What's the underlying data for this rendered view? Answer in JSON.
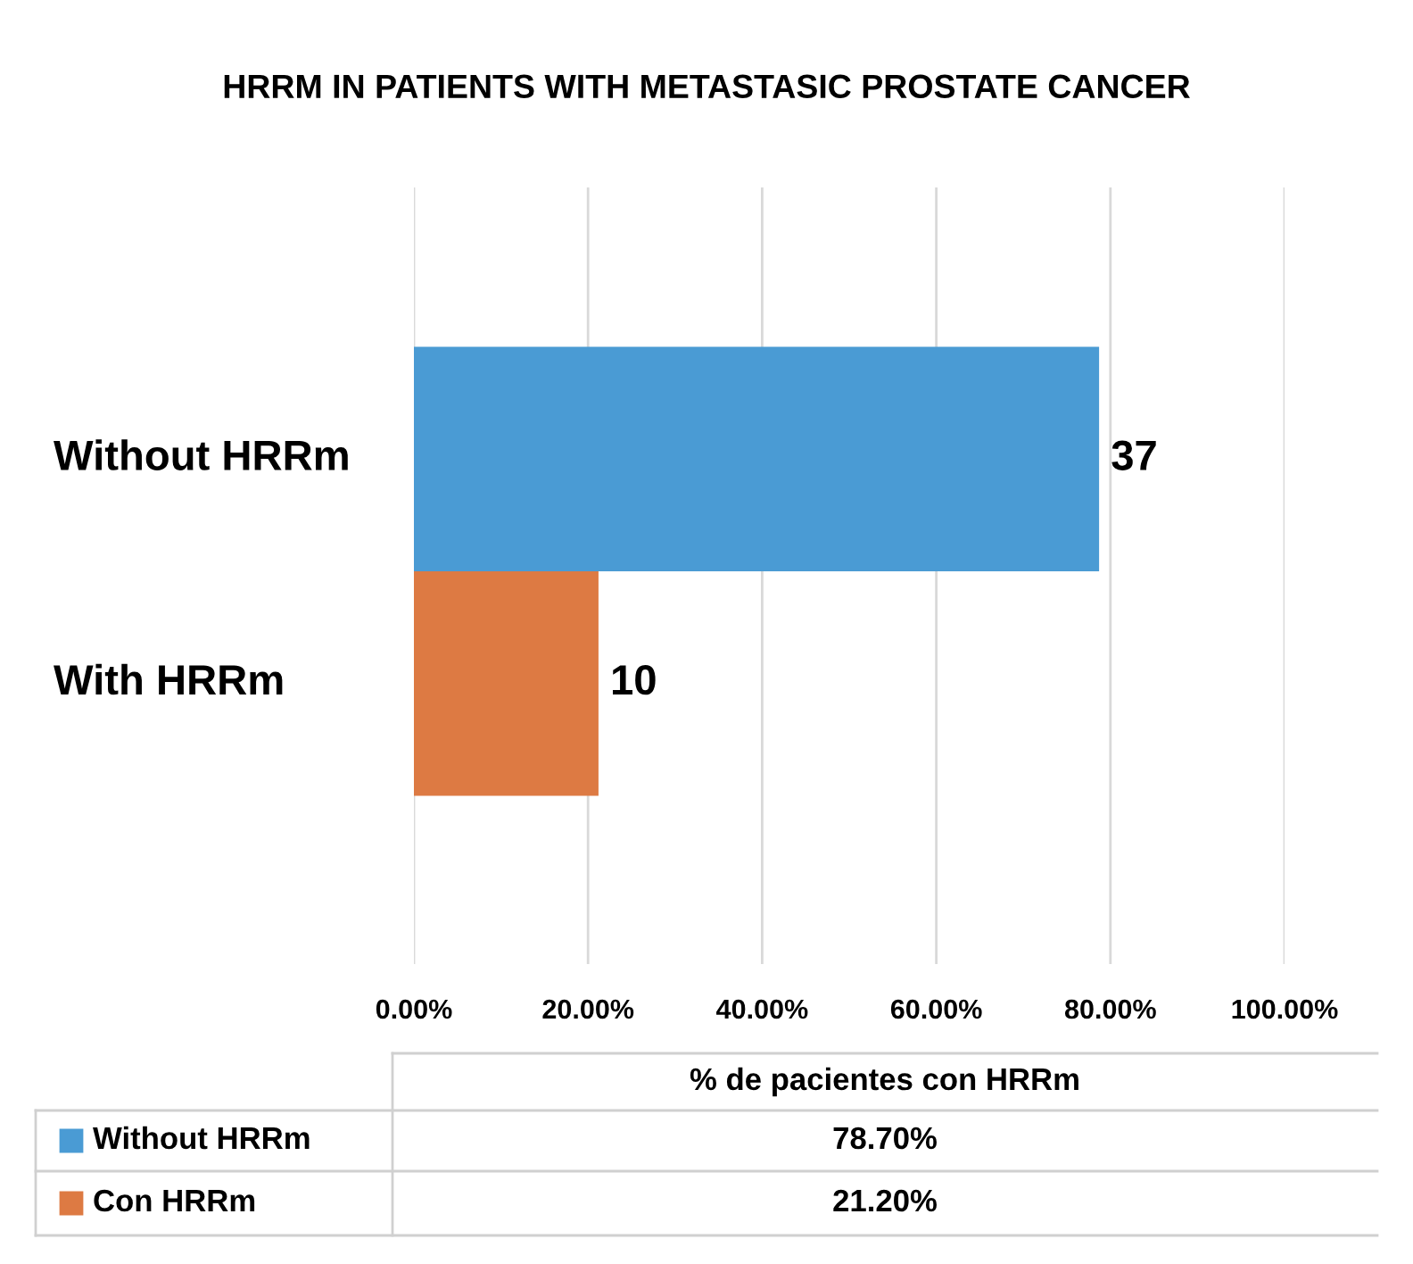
{
  "chart_data": {
    "type": "bar",
    "orientation": "horizontal",
    "title": "HRRM IN PATIENTS WITH METASTASIC PROSTATE CANCER",
    "categories": [
      "Without HRRm",
      "With HRRm"
    ],
    "series": [
      {
        "name": "Without HRRm",
        "color": "#4a9bd4",
        "values": [
          78.7,
          null
        ]
      },
      {
        "name": "Con HRRm",
        "color": "#dd7a43",
        "values": [
          null,
          21.2
        ]
      }
    ],
    "xlim": [
      0,
      100
    ],
    "xticks": [
      {
        "value": 0,
        "label": "0.00%"
      },
      {
        "value": 20,
        "label": "20.00%"
      },
      {
        "value": 40,
        "label": "40.00%"
      },
      {
        "value": 60,
        "label": "60.00%"
      },
      {
        "value": 80,
        "label": "80.00%"
      },
      {
        "value": 100,
        "label": "100.00%"
      }
    ],
    "grid": "x",
    "legend": "bottom",
    "annotations": [
      "% de pacientes con HRRm",
      "78.70%",
      "21.20%",
      {
        "text": "37",
        "x": 78.7,
        "y": "Without HRRm"
      },
      {
        "text": "10",
        "x": 21.2,
        "y": "With HRRm"
      }
    ]
  }
}
